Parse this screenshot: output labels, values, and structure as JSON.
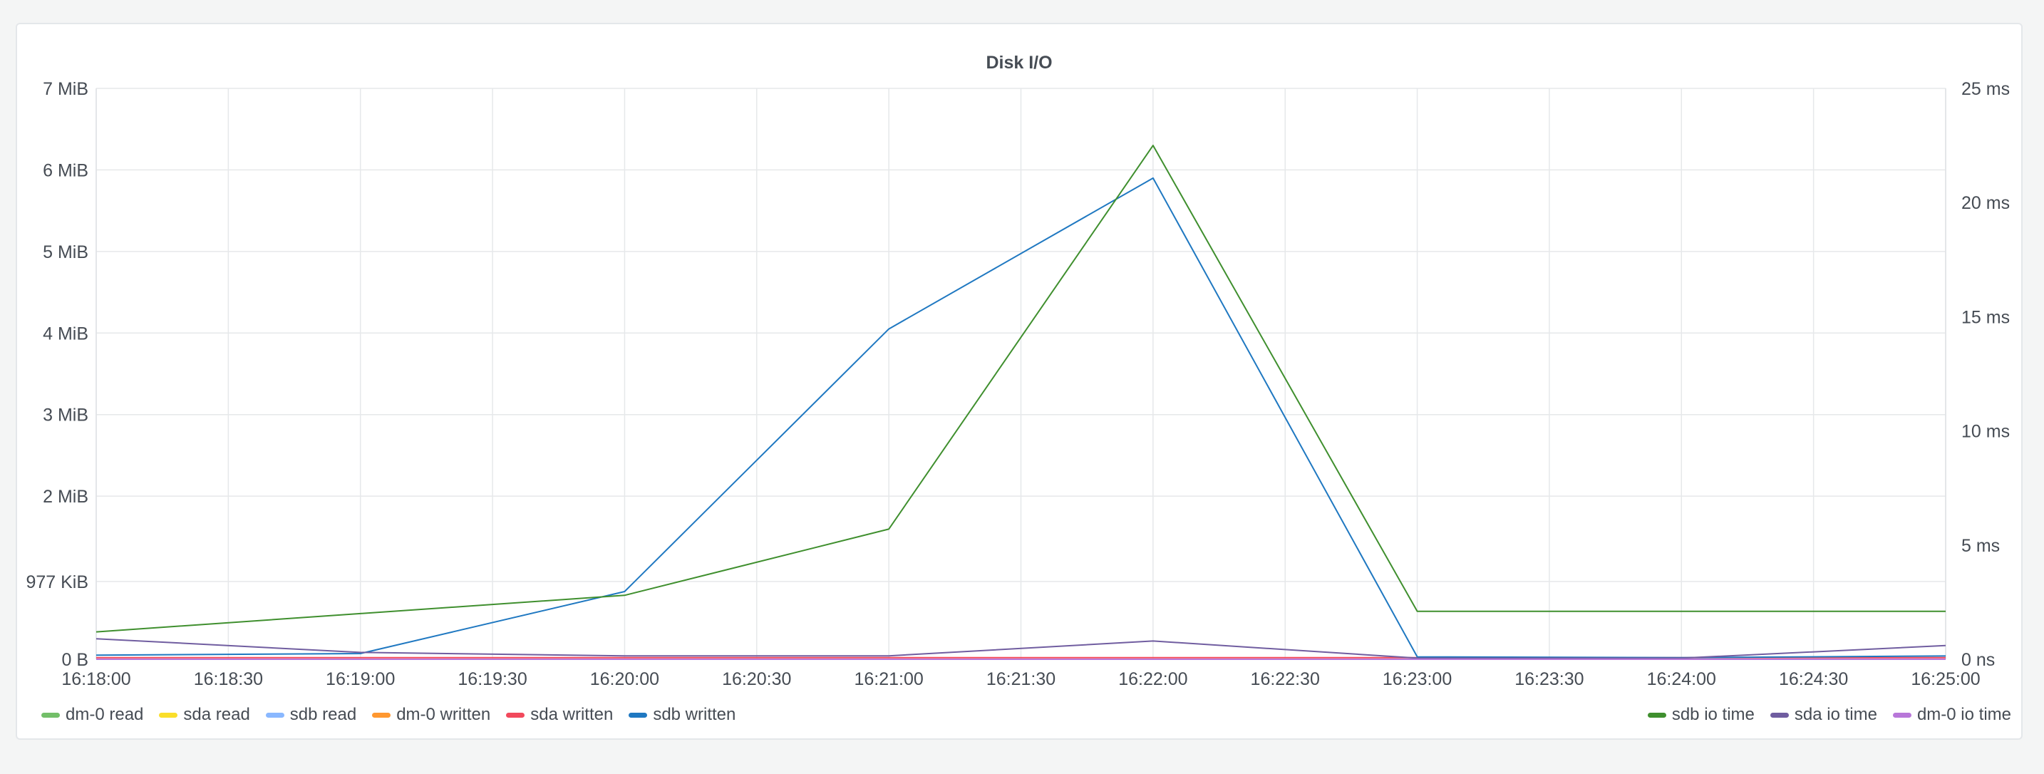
{
  "panel": {
    "title": "Disk I/O"
  },
  "chart_data": {
    "type": "line",
    "title": "Disk I/O",
    "x": [
      "16:18:00",
      "16:19:00",
      "16:20:00",
      "16:21:00",
      "16:22:00",
      "16:23:00",
      "16:24:00",
      "16:25:00"
    ],
    "x_tick_labels": [
      "16:18:00",
      "16:18:30",
      "16:19:00",
      "16:19:30",
      "16:20:00",
      "16:20:30",
      "16:21:00",
      "16:21:30",
      "16:22:00",
      "16:22:30",
      "16:23:00",
      "16:23:30",
      "16:24:00",
      "16:24:30",
      "16:25:00"
    ],
    "left_axis": {
      "unit": "MiB",
      "ylim": [
        0,
        7
      ],
      "tick_values": [
        0,
        0.954,
        2,
        3,
        4,
        5,
        6,
        7
      ],
      "tick_labels": [
        "0 B",
        "977 KiB",
        "2 MiB",
        "3 MiB",
        "4 MiB",
        "5 MiB",
        "6 MiB",
        "7 MiB"
      ]
    },
    "right_axis": {
      "unit": "ms",
      "ylim": [
        0,
        25
      ],
      "tick_values": [
        0,
        5,
        10,
        15,
        20,
        25
      ],
      "tick_labels": [
        "0 ns",
        "5 ms",
        "10 ms",
        "15 ms",
        "20 ms",
        "25 ms"
      ]
    },
    "grid": true,
    "series": [
      {
        "name": "dm-0 read",
        "axis": "left",
        "color": "#73bf69",
        "values": [
          0,
          0,
          0,
          0,
          0,
          0,
          0,
          0
        ]
      },
      {
        "name": "sda read",
        "axis": "left",
        "color": "#fade2a",
        "values": [
          0,
          0,
          0,
          0,
          0,
          0,
          0,
          0
        ]
      },
      {
        "name": "sdb read",
        "axis": "left",
        "color": "#8ab8ff",
        "values": [
          0,
          0,
          0,
          0,
          0,
          0,
          0,
          0
        ]
      },
      {
        "name": "dm-0 written",
        "axis": "left",
        "color": "#ff9830",
        "values": [
          0,
          0,
          0,
          0,
          0,
          0,
          0,
          0
        ]
      },
      {
        "name": "sda written",
        "axis": "left",
        "color": "#f2495c",
        "values": [
          0.02,
          0.02,
          0.02,
          0.02,
          0.02,
          0.02,
          0.02,
          0.02
        ]
      },
      {
        "name": "sdb written",
        "axis": "left",
        "color": "#1f78c1",
        "values": [
          0.05,
          0.07,
          0.83,
          4.05,
          5.9,
          0.03,
          0.02,
          0.04
        ]
      },
      {
        "name": "sdb io time",
        "axis": "right",
        "color": "#3f8f2e",
        "values": [
          1.2,
          2.0,
          2.8,
          5.7,
          22.5,
          2.1,
          2.1,
          2.1
        ]
      },
      {
        "name": "sda io time",
        "axis": "right",
        "color": "#705da0",
        "values": [
          0.9,
          0.3,
          0.15,
          0.15,
          0.8,
          0.05,
          0.05,
          0.6
        ]
      },
      {
        "name": "dm-0 io time",
        "axis": "right",
        "color": "#b877d9",
        "values": [
          0,
          0,
          0,
          0,
          0,
          0,
          0,
          0
        ]
      }
    ],
    "legend": {
      "left": [
        "dm-0 read",
        "sda read",
        "sdb read",
        "dm-0 written",
        "sda written",
        "sdb written"
      ],
      "right": [
        "sdb io time",
        "sda io time",
        "dm-0 io time"
      ],
      "placement": "bottom"
    }
  }
}
